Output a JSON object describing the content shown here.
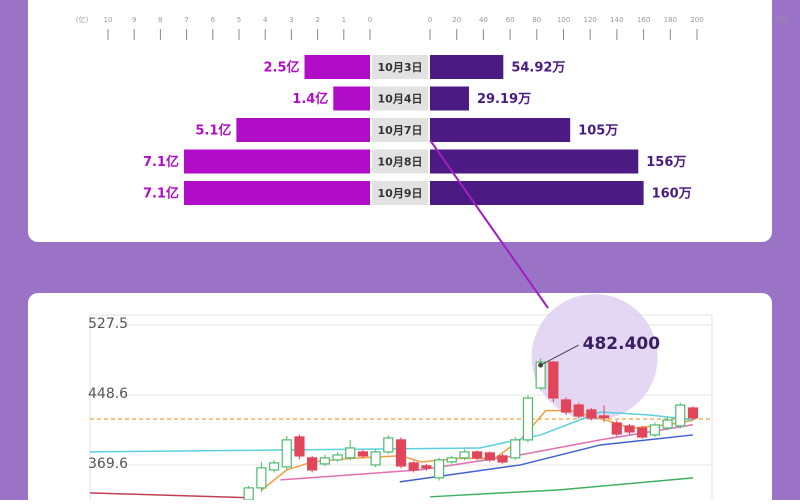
{
  "chart_data": [
    {
      "type": "butterfly",
      "categories": [
        "10月3日",
        "10月4日",
        "10月7日",
        "10月8日",
        "10月9日"
      ],
      "left": {
        "values": [
          2.5,
          1.4,
          5.1,
          7.1,
          7.1
        ],
        "value_labels": [
          "2.5亿",
          "1.4亿",
          "5.1亿",
          "7.1亿",
          "7.1亿"
        ],
        "color": "#b10dc9",
        "xlim": [
          0,
          10
        ],
        "xticks": [
          0,
          1,
          2,
          3,
          4,
          5,
          6,
          7,
          8,
          9,
          10
        ],
        "unit": "(亿)"
      },
      "right": {
        "values": [
          54.92,
          29.19,
          105,
          156,
          160
        ],
        "value_labels": [
          "54.92万",
          "29.19万",
          "105万",
          "156万",
          "160万"
        ],
        "color": "#4b1a82",
        "xlim": [
          0,
          200
        ],
        "xticks": [
          0,
          20,
          40,
          60,
          80,
          100,
          120,
          140,
          160,
          180,
          200
        ],
        "unit": "(万)"
      }
    },
    {
      "type": "candlestick",
      "xlim": [
        -12.5,
        36.5
      ],
      "ylim": [
        330,
        539
      ],
      "yticks": [
        369.6,
        448.6,
        527.5
      ],
      "up_color": "#4cbb6c",
      "down_color": "#e0455a",
      "open": [
        330,
        343.7,
        364,
        367.4,
        401.2,
        377.6,
        370.8,
        375.3,
        377.6,
        384.3,
        369.6,
        384.3,
        397.9,
        371.9,
        368.5,
        355,
        373,
        377.6,
        384.3,
        383.2,
        379.8,
        377.6,
        397.9,
        456.5,
        485.8,
        443,
        437.3,
        431.7,
        425,
        417,
        413.6,
        411.4,
        403.5,
        411.4,
        413.6,
        433.9
      ],
      "high": [
        346,
        373,
        375,
        402.4,
        404,
        380,
        381,
        384,
        397.9,
        387,
        387,
        403,
        401,
        374,
        371,
        378,
        380,
        387,
        386,
        385,
        382,
        401,
        448.6,
        490.3,
        487,
        446,
        440,
        434,
        437,
        420,
        416,
        414,
        418,
        424,
        440,
        436
      ],
      "low": [
        331,
        339,
        361,
        364,
        376,
        361,
        368,
        373,
        375,
        377,
        367,
        382,
        366,
        361,
        363,
        352,
        371,
        375,
        375,
        373,
        371,
        375,
        395,
        454,
        440.7,
        426,
        422,
        420,
        418,
        402,
        404,
        399,
        401,
        409,
        411,
        420
      ],
      "close": [
        343.7,
        366.3,
        371.9,
        397.9,
        379.8,
        364,
        377.6,
        380.9,
        388.8,
        379.8,
        384.3,
        400.1,
        368.5,
        364,
        366.3,
        375.3,
        377.6,
        384.3,
        377.6,
        375.3,
        373,
        397.9,
        445.3,
        485.8,
        445.3,
        429.4,
        424.9,
        422.7,
        423,
        404.6,
        406.9,
        401.2,
        414.8,
        420.4,
        437.3,
        422.7
      ],
      "lines": [
        {
          "color": "#f0a040",
          "x": [
            1,
            3,
            5,
            8,
            12,
            13.6,
            16.5,
            19.4,
            21.4,
            23.4,
            25.3,
            28.2,
            30.1,
            33,
            35
          ],
          "values": [
            341,
            364,
            373,
            377,
            380,
            373,
            377,
            377,
            398,
            431,
            431,
            420,
            411,
            415,
            420
          ]
        },
        {
          "color": "#5ad0e0",
          "x": [
            -12.5,
            18.2,
            23,
            27.7,
            31.6,
            35
          ],
          "values": [
            384.3,
            388.8,
            403.5,
            429.4,
            426,
            420.4
          ]
        },
        {
          "color": "#e070b0",
          "x": [
            2.5,
            13.5,
            21.4,
            27.7,
            35
          ],
          "values": [
            352.8,
            364,
            381,
            397.9,
            415
          ]
        },
        {
          "color": "#4060d0",
          "x": [
            11.9,
            21.4,
            27.7,
            35
          ],
          "values": [
            350.5,
            369.6,
            392.2,
            403.5
          ]
        },
        {
          "color": "#40b060",
          "x": [
            14.3,
            24.5,
            35
          ],
          "values": [
            333.6,
            341.5,
            355
          ]
        },
        {
          "color": "#c04050",
          "x": [
            -12.5,
            0.1
          ],
          "values": [
            338,
            332.5
          ]
        }
      ],
      "reference_line": 421.5,
      "annotation": {
        "x": 23,
        "value": 482.4,
        "label": "482.400"
      }
    }
  ]
}
